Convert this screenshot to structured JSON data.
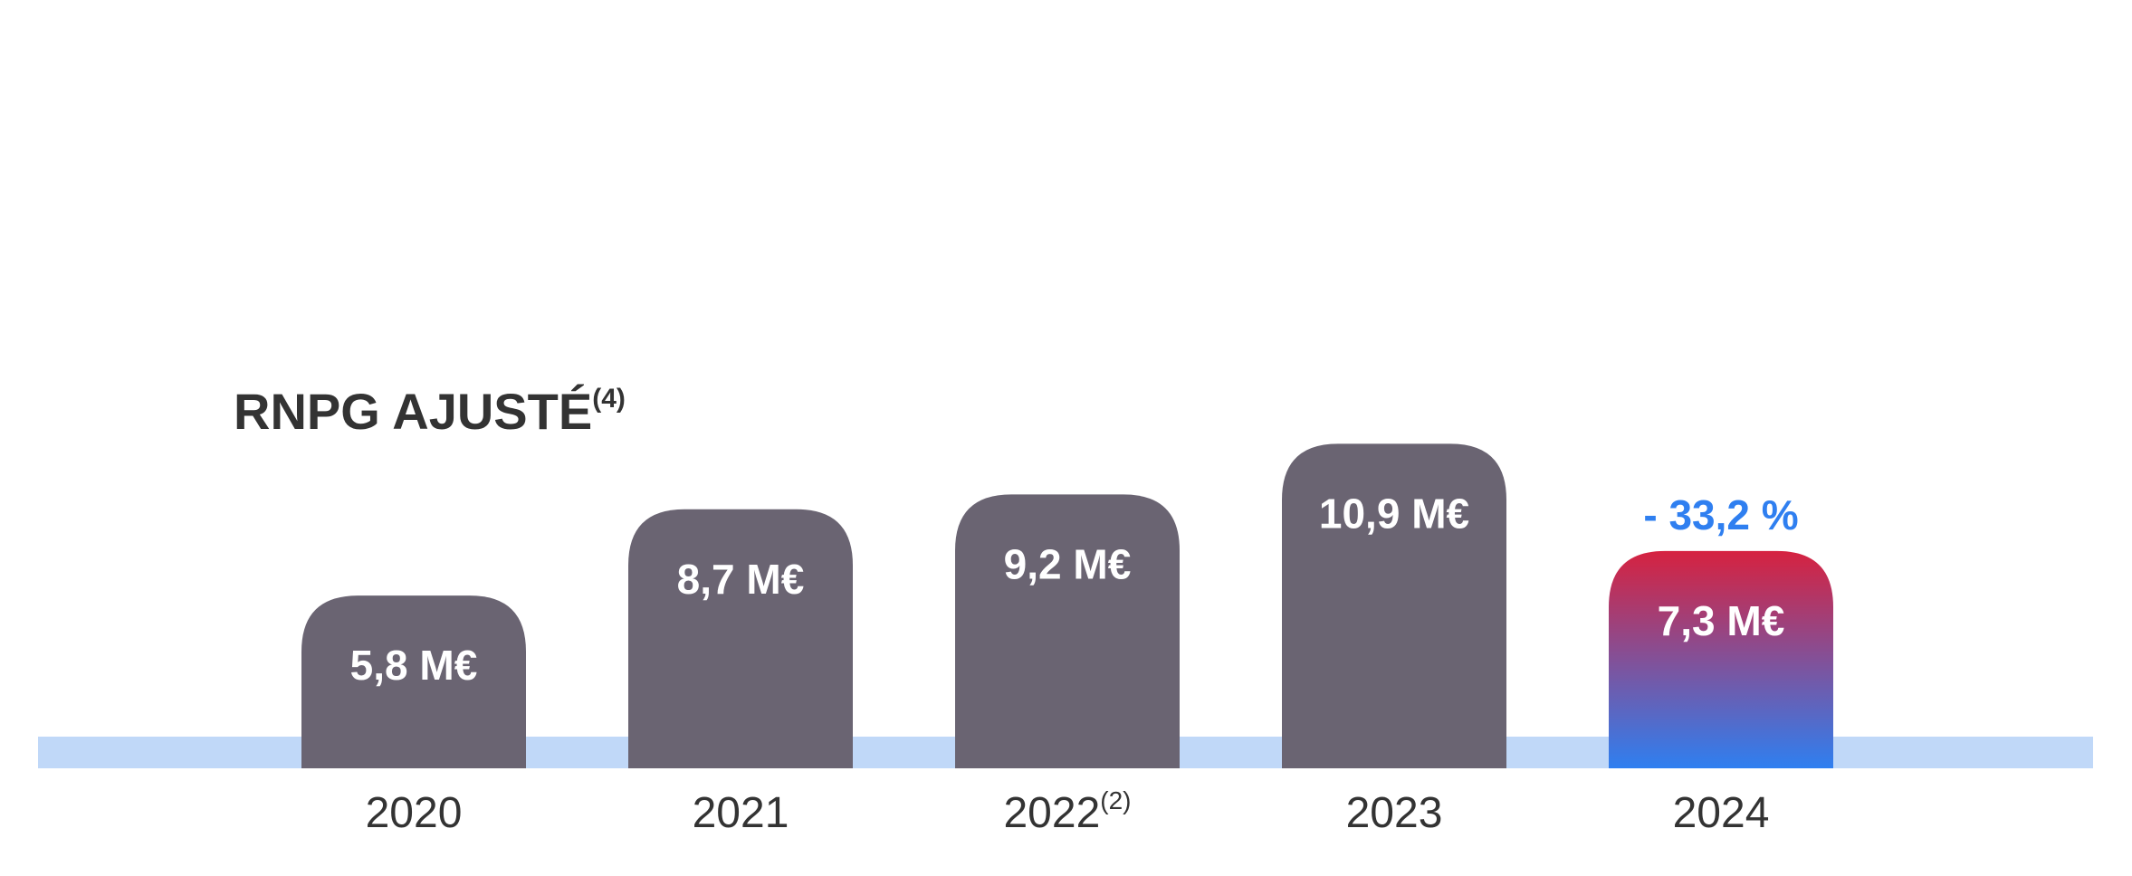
{
  "chart_data": {
    "type": "bar",
    "title": "RNPG AJUSTÉ",
    "title_superscript": "(4)",
    "categories": [
      "2020",
      "2021",
      "2022",
      "2023",
      "2024"
    ],
    "category_superscripts": [
      "",
      "",
      "(2)",
      "",
      ""
    ],
    "values": [
      5.8,
      8.7,
      9.2,
      10.9,
      7.3
    ],
    "value_labels": [
      "5,8 M€",
      "8,7 M€",
      "9,2 M€",
      "10,9 M€",
      "7,3 M€"
    ],
    "unit": "M€",
    "highlight_index": 4,
    "change_label": "- 33,2 %",
    "colors": {
      "bar": "#6a6472",
      "highlight_top": "#d62240",
      "highlight_bottom": "#2f7ff0",
      "accent": "#2f7ff0",
      "baseline_band": "#c0d8f8",
      "text": "#333333"
    }
  }
}
